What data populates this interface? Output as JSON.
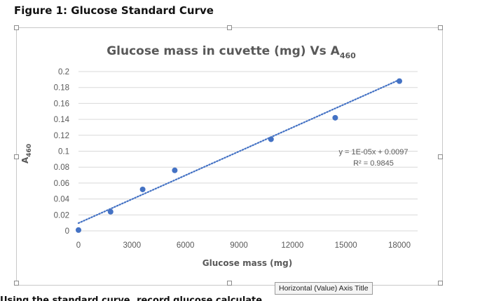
{
  "figure_title": "Figure 1: Glucose Standard Curve",
  "tooltip_text": "Horizontal (Value) Axis Title",
  "bottom_text": "Using the standard curve, record glucose calculate",
  "chart_data": {
    "type": "scatter",
    "title_main": "Glucose mass in cuvette (mg) Vs A",
    "title_sub": "460",
    "xlabel": "Glucose mass (mg)",
    "ylabel_main": "A",
    "ylabel_sub": "460",
    "xlim": [
      0,
      18000
    ],
    "ylim": [
      0,
      0.2
    ],
    "x_ticks": [
      "0",
      "3000",
      "6000",
      "9000",
      "12000",
      "15000",
      "18000"
    ],
    "x_tick_values": [
      0,
      3000,
      6000,
      9000,
      12000,
      15000,
      18000
    ],
    "y_ticks": [
      "0",
      "0.02",
      "0.04",
      "0.06",
      "0.08",
      "0.1",
      "0.12",
      "0.14",
      "0.16",
      "0.18",
      "0.2"
    ],
    "y_tick_values": [
      0,
      0.02,
      0.04,
      0.06,
      0.08,
      0.1,
      0.12,
      0.14,
      0.16,
      0.18,
      0.2
    ],
    "grid": true,
    "series": [
      {
        "color": "#4472C4",
        "points": [
          {
            "x": 0,
            "y": 0.001
          },
          {
            "x": 1800,
            "y": 0.024
          },
          {
            "x": 3600,
            "y": 0.052
          },
          {
            "x": 5400,
            "y": 0.076
          },
          {
            "x": 10800,
            "y": 0.115
          },
          {
            "x": 14400,
            "y": 0.142
          },
          {
            "x": 18000,
            "y": 0.188
          }
        ]
      }
    ],
    "trendline": {
      "type": "linear",
      "slope": 1e-05,
      "intercept": 0.0097,
      "style": "dotted",
      "color": "#4472C4",
      "equation_text": "y = 1E-05x + 0.0097",
      "r2_text": "R² = 0.9845"
    }
  }
}
